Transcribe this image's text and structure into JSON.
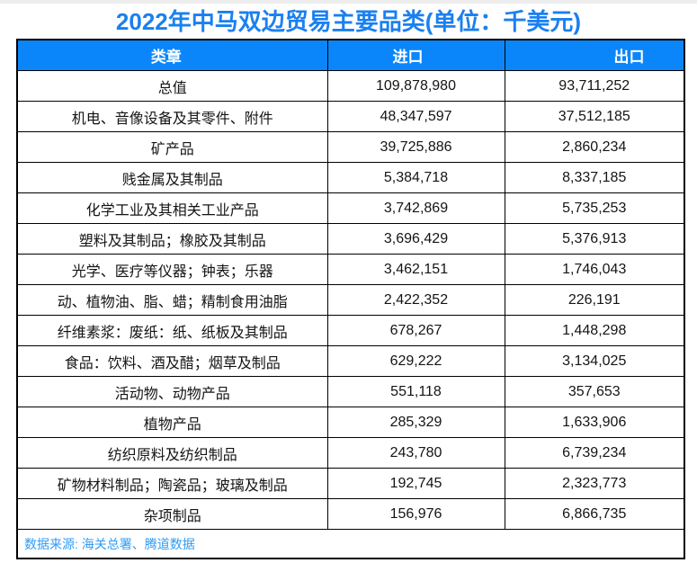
{
  "page": {
    "title": "2022年中马双边贸易主要品类(单位：千美元)",
    "source_note": "数据来源: 海关总署、腾道数据"
  },
  "table": {
    "headers": [
      "类章",
      "进口",
      "出口"
    ],
    "rows": [
      {
        "category": "总值",
        "import": "109,878,980",
        "export": "93,711,252"
      },
      {
        "category": "机电、音像设备及其零件、附件",
        "import": "48,347,597",
        "export": "37,512,185"
      },
      {
        "category": "矿产品",
        "import": "39,725,886",
        "export": "2,860,234"
      },
      {
        "category": "贱金属及其制品",
        "import": "5,384,718",
        "export": "8,337,185"
      },
      {
        "category": "化学工业及其相关工业产品",
        "import": "3,742,869",
        "export": "5,735,253"
      },
      {
        "category": "塑料及其制品；橡胶及其制品",
        "import": "3,696,429",
        "export": "5,376,913"
      },
      {
        "category": "光学、医疗等仪器；钟表；乐器",
        "import": "3,462,151",
        "export": "1,746,043"
      },
      {
        "category": "动、植物油、脂、蜡；精制食用油脂",
        "import": "2,422,352",
        "export": "226,191"
      },
      {
        "category": "纤维素浆：废纸：纸、纸板及其制品",
        "import": "678,267",
        "export": "1,448,298"
      },
      {
        "category": "食品：饮料、酒及醋；烟草及制品",
        "import": "629,222",
        "export": "3,134,025"
      },
      {
        "category": "活动物、动物产品",
        "import": "551,118",
        "export": "357,653"
      },
      {
        "category": "植物产品",
        "import": "285,329",
        "export": "1,633,906"
      },
      {
        "category": "纺织原料及纺织制品",
        "import": "243,780",
        "export": "6,739,234"
      },
      {
        "category": "矿物材料制品；陶瓷品；玻璃及制品",
        "import": "192,745",
        "export": "2,323,773"
      },
      {
        "category": "杂项制品",
        "import": "156,976",
        "export": "6,866,735"
      }
    ]
  },
  "colors": {
    "title_blue": "#1a80f0",
    "header_bg": "#0a86fa",
    "header_text": "#ffffff",
    "source_text": "#2f9bf5",
    "border": "#000000",
    "top_strip": "#ededed"
  },
  "chart_data": {
    "type": "table",
    "title": "2022年中马双边贸易主要品类(单位：千美元)",
    "unit": "千美元",
    "columns": [
      "类章",
      "进口",
      "出口"
    ],
    "rows": [
      [
        "总值",
        109878980,
        93711252
      ],
      [
        "机电、音像设备及其零件、附件",
        48347597,
        37512185
      ],
      [
        "矿产品",
        39725886,
        2860234
      ],
      [
        "贱金属及其制品",
        5384718,
        8337185
      ],
      [
        "化学工业及其相关工业产品",
        3742869,
        5735253
      ],
      [
        "塑料及其制品；橡胶及其制品",
        3696429,
        5376913
      ],
      [
        "光学、医疗等仪器；钟表；乐器",
        3462151,
        1746043
      ],
      [
        "动、植物油、脂、蜡；精制食用油脂",
        2422352,
        226191
      ],
      [
        "纤维素浆：废纸：纸、纸板及其制品",
        678267,
        1448298
      ],
      [
        "食品：饮料、酒及醋；烟草及制品",
        629222,
        3134025
      ],
      [
        "活动物、动物产品",
        551118,
        357653
      ],
      [
        "植物产品",
        285329,
        1633906
      ],
      [
        "纺织原料及纺织制品",
        243780,
        6739234
      ],
      [
        "矿物材料制品；陶瓷品；玻璃及制品",
        192745,
        2323773
      ],
      [
        "杂项制品",
        156976,
        6866735
      ]
    ],
    "source": "数据来源: 海关总署、腾道数据"
  }
}
